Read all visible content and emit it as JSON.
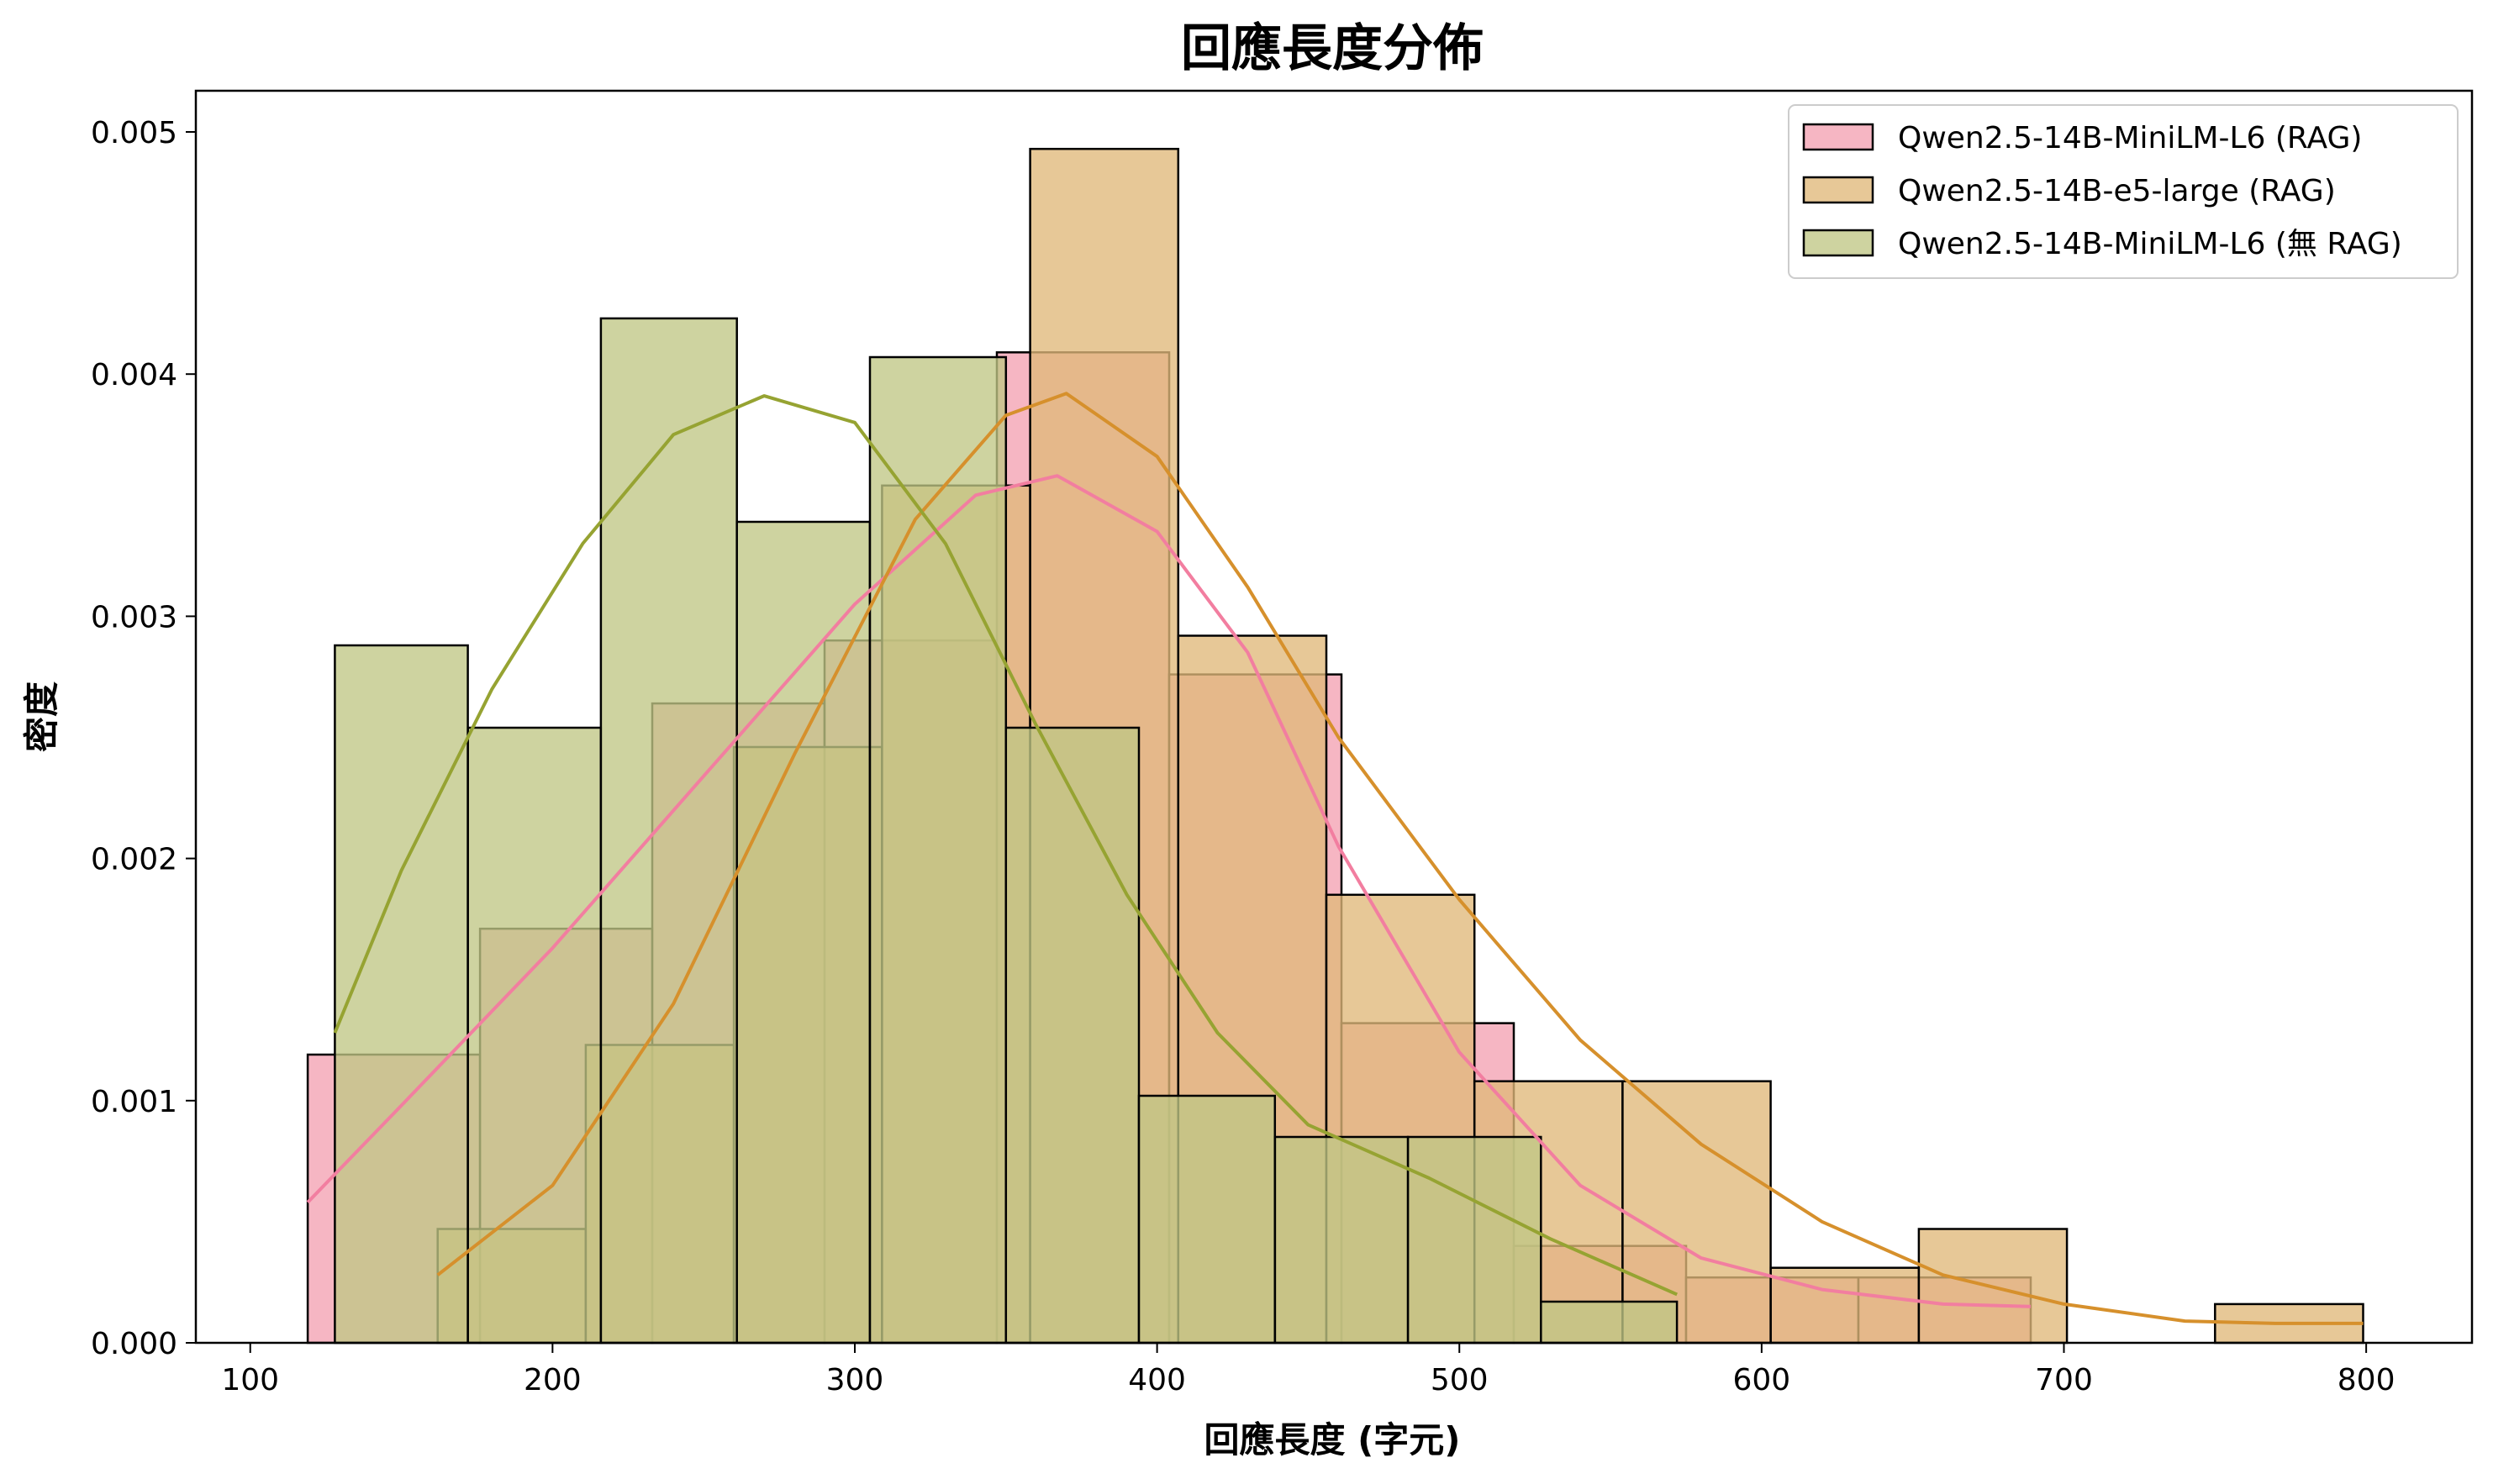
{
  "chart_data": {
    "type": "histogram",
    "title": "回應長度分佈",
    "xlabel": "回應長度 (字元)",
    "ylabel": "密度",
    "xlim": [
      82,
      835
    ],
    "ylim": [
      0,
      0.00517
    ],
    "xticks": [
      100,
      200,
      300,
      400,
      500,
      600,
      700,
      800
    ],
    "yticks": [
      0,
      0.001,
      0.002,
      0.003,
      0.004,
      0.005
    ],
    "ytick_labels": [
      "0.000",
      "0.001",
      "0.002",
      "0.003",
      "0.004",
      "0.005"
    ],
    "grid": false,
    "legend_position": "top-right",
    "series": [
      {
        "name": "Qwen2.5-14B-MiniLM-L6 (RAG)",
        "color": "#f27ea0",
        "fill_color": "#f4a2b2",
        "bins": [
          {
            "x0": 119,
            "x1": 176,
            "density": 0.00119
          },
          {
            "x0": 176,
            "x1": 233,
            "density": 0.00171
          },
          {
            "x0": 233,
            "x1": 290,
            "density": 0.00264
          },
          {
            "x0": 290,
            "x1": 347,
            "density": 0.0029
          },
          {
            "x0": 347,
            "x1": 404,
            "density": 0.00409
          },
          {
            "x0": 404,
            "x1": 461,
            "density": 0.00276
          },
          {
            "x0": 461,
            "x1": 518,
            "density": 0.00132
          },
          {
            "x0": 518,
            "x1": 575,
            "density": 0.0004
          },
          {
            "x0": 575,
            "x1": 632,
            "density": 0.00027
          },
          {
            "x0": 632,
            "x1": 689,
            "density": 0.00027
          }
        ],
        "kde": [
          [
            119,
            0.00058
          ],
          [
            150,
            0.00098
          ],
          [
            200,
            0.00163
          ],
          [
            250,
            0.00234
          ],
          [
            300,
            0.00305
          ],
          [
            340,
            0.0035
          ],
          [
            367,
            0.00358
          ],
          [
            400,
            0.00335
          ],
          [
            430,
            0.00285
          ],
          [
            460,
            0.00205
          ],
          [
            500,
            0.0012
          ],
          [
            540,
            0.00065
          ],
          [
            580,
            0.00035
          ],
          [
            620,
            0.00022
          ],
          [
            660,
            0.00016
          ],
          [
            689,
            0.00015
          ]
        ]
      },
      {
        "name": "Qwen2.5-14B-e5-large (RAG)",
        "color": "#d6902c",
        "fill_color": "#e0b97a",
        "bins": [
          {
            "x0": 162,
            "x1": 211,
            "density": 0.00047
          },
          {
            "x0": 211,
            "x1": 260,
            "density": 0.00123
          },
          {
            "x0": 260,
            "x1": 309,
            "density": 0.00246
          },
          {
            "x0": 309,
            "x1": 358,
            "density": 0.00354
          },
          {
            "x0": 358,
            "x1": 407,
            "density": 0.00493
          },
          {
            "x0": 407,
            "x1": 456,
            "density": 0.00292
          },
          {
            "x0": 456,
            "x1": 505,
            "density": 0.00185
          },
          {
            "x0": 505,
            "x1": 554,
            "density": 0.00108
          },
          {
            "x0": 554,
            "x1": 603,
            "density": 0.00108
          },
          {
            "x0": 603,
            "x1": 652,
            "density": 0.00031
          },
          {
            "x0": 652,
            "x1": 701,
            "density": 0.00047
          },
          {
            "x0": 701,
            "x1": 750,
            "density": 0.0
          },
          {
            "x0": 750,
            "x1": 799,
            "density": 0.00016
          }
        ],
        "kde": [
          [
            162,
            0.00028
          ],
          [
            200,
            0.00065
          ],
          [
            240,
            0.0014
          ],
          [
            280,
            0.00243
          ],
          [
            320,
            0.0034
          ],
          [
            350,
            0.00383
          ],
          [
            370,
            0.00392
          ],
          [
            400,
            0.00366
          ],
          [
            430,
            0.00312
          ],
          [
            460,
            0.0025
          ],
          [
            500,
            0.00183
          ],
          [
            540,
            0.00125
          ],
          [
            580,
            0.00082
          ],
          [
            620,
            0.0005
          ],
          [
            660,
            0.00028
          ],
          [
            700,
            0.00016
          ],
          [
            740,
            9e-05
          ],
          [
            770,
            8e-05
          ],
          [
            799,
            8e-05
          ]
        ]
      },
      {
        "name": "Qwen2.5-14B-MiniLM-L6 (無 RAG)",
        "color": "#96a332",
        "fill_color": "#c0c785",
        "bins": [
          {
            "x0": 128,
            "x1": 172,
            "density": 0.00288
          },
          {
            "x0": 172,
            "x1": 216,
            "density": 0.00254
          },
          {
            "x0": 216,
            "x1": 261,
            "density": 0.00423
          },
          {
            "x0": 261,
            "x1": 305,
            "density": 0.00339
          },
          {
            "x0": 305,
            "x1": 350,
            "density": 0.00407
          },
          {
            "x0": 350,
            "x1": 394,
            "density": 0.00254
          },
          {
            "x0": 394,
            "x1": 439,
            "density": 0.00102
          },
          {
            "x0": 439,
            "x1": 483,
            "density": 0.00085
          },
          {
            "x0": 483,
            "x1": 527,
            "density": 0.00085
          },
          {
            "x0": 527,
            "x1": 572,
            "density": 0.00017
          }
        ],
        "kde": [
          [
            128,
            0.00128
          ],
          [
            150,
            0.00195
          ],
          [
            180,
            0.0027
          ],
          [
            210,
            0.0033
          ],
          [
            240,
            0.00375
          ],
          [
            270,
            0.00391
          ],
          [
            300,
            0.0038
          ],
          [
            330,
            0.0033
          ],
          [
            360,
            0.00255
          ],
          [
            390,
            0.00185
          ],
          [
            420,
            0.00128
          ],
          [
            450,
            0.0009
          ],
          [
            490,
            0.00068
          ],
          [
            530,
            0.00043
          ],
          [
            572,
            0.0002
          ]
        ]
      }
    ]
  }
}
